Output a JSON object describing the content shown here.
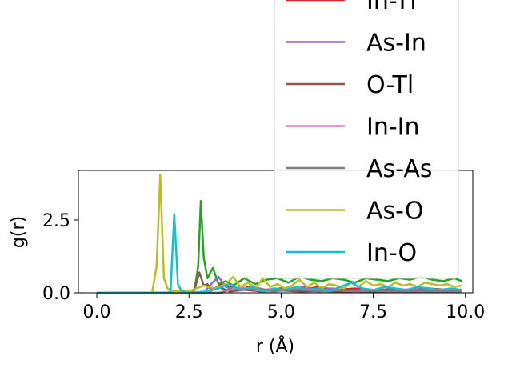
{
  "chart_data": {
    "type": "line",
    "xlabel": "r (Å)",
    "ylabel": "g(r)",
    "xlim": [
      -0.5,
      10.2
    ],
    "ylim": [
      0,
      4.2
    ],
    "x_ticks": [
      "0.0",
      "2.5",
      "5.0",
      "7.5",
      "10.0"
    ],
    "x_tick_values": [
      0,
      2.5,
      5,
      7.5,
      10
    ],
    "y_ticks": [
      "0.0",
      "2.5"
    ],
    "y_tick_values": [
      0,
      2.5
    ],
    "grid": false,
    "legend_placement": "upper-right",
    "legend_entries": [
      "In-Tl",
      "As-In",
      "O-Tl",
      "In-In",
      "As-As",
      "As-O",
      "In-O"
    ],
    "series": [
      {
        "name": "",
        "color": "#2ca02c",
        "x": [
          0,
          2.5,
          2.65,
          2.75,
          2.82,
          2.9,
          3.0,
          3.15,
          3.3,
          3.5,
          3.7,
          4.0,
          4.3,
          4.6,
          4.9,
          5.2,
          5.5,
          5.8,
          6.1,
          6.4,
          6.7,
          7.0,
          7.3,
          7.6,
          7.9,
          8.2,
          8.5,
          8.8,
          9.1,
          9.4,
          9.7,
          9.9
        ],
        "y": [
          0,
          0,
          0.1,
          0.9,
          3.15,
          1.2,
          0.5,
          0.85,
          0.3,
          0.4,
          0.25,
          0.5,
          0.3,
          0.45,
          0.5,
          0.35,
          0.55,
          0.45,
          0.4,
          0.5,
          0.45,
          0.35,
          0.5,
          0.45,
          0.4,
          0.5,
          0.45,
          0.55,
          0.45,
          0.4,
          0.5,
          0.4
        ]
      },
      {
        "name": "",
        "color": "#d62728",
        "x": [
          0,
          3.0,
          3.2,
          3.4,
          3.6,
          3.9,
          4.2,
          4.5,
          5.0,
          5.5,
          6.0,
          6.5,
          7.0,
          7.5,
          8.0,
          8.5,
          9.0,
          9.5,
          9.9
        ],
        "y": [
          0,
          0,
          0.15,
          0.3,
          0.2,
          0.1,
          0.25,
          0.1,
          0.15,
          0.1,
          0.2,
          0.1,
          0.15,
          0.1,
          0.12,
          0.1,
          0.15,
          0.1,
          0.1
        ]
      },
      {
        "name": "",
        "color": "#9467bd",
        "x": [
          0,
          2.9,
          3.1,
          3.3,
          3.5,
          3.8,
          4.1,
          4.4,
          4.8,
          5.2,
          5.6,
          6.0,
          6.4,
          6.8,
          7.2,
          7.6,
          8.0,
          8.5,
          9.0,
          9.5,
          9.9
        ],
        "y": [
          0,
          0,
          0.3,
          0.55,
          0.2,
          0.1,
          0.15,
          0.05,
          0.1,
          0.1,
          0.2,
          0.1,
          0.15,
          0.05,
          0.1,
          0.1,
          0.08,
          0.12,
          0.1,
          0.08,
          0.1
        ]
      },
      {
        "name": "",
        "color": "#8c564b",
        "x": [
          0,
          2.5,
          2.65,
          2.78,
          2.9,
          3.0,
          3.1,
          3.3,
          3.6,
          4.0,
          4.5,
          5.0,
          5.5,
          6.0,
          6.5,
          7.0,
          7.5,
          8.0,
          8.5,
          9.0,
          9.5,
          9.9
        ],
        "y": [
          0,
          0,
          0.1,
          0.7,
          0.25,
          0.3,
          0.1,
          0.2,
          0.05,
          0.1,
          0.05,
          0.08,
          0.05,
          0.06,
          0.05,
          0.04,
          0.05,
          0.04,
          0.05,
          0.04,
          0.05,
          0.04
        ]
      },
      {
        "name": "",
        "color": "#e377c2",
        "x": [
          0,
          3.3,
          3.6,
          3.9,
          4.3,
          4.7,
          5.1,
          5.5,
          6.0,
          6.5,
          7.0,
          7.5,
          8.0,
          8.5,
          9.0,
          9.5,
          9.9
        ],
        "y": [
          0,
          0,
          0.1,
          0.2,
          0.1,
          0.05,
          0.1,
          0.15,
          0.05,
          0.1,
          0.05,
          0.08,
          0.05,
          0.06,
          0.05,
          0.04,
          0.05
        ]
      },
      {
        "name": "",
        "color": "#7f7f7f",
        "x": [
          0,
          3.4,
          3.7,
          4.0,
          4.4,
          4.8,
          5.2,
          5.6,
          6.0,
          6.5,
          7.0,
          7.5,
          8.0,
          8.5,
          9.0,
          9.5,
          9.9
        ],
        "y": [
          0,
          0,
          0.2,
          0.1,
          0.15,
          0.05,
          0.1,
          0.12,
          0.05,
          0.1,
          0.06,
          0.08,
          0.05,
          0.06,
          0.05,
          0.04,
          0.05
        ]
      },
      {
        "name": "",
        "color": "#bcbd22",
        "x": [
          0,
          1.5,
          1.62,
          1.72,
          1.82,
          1.92,
          2.1,
          2.5,
          2.9,
          3.2,
          3.5,
          3.7,
          3.9,
          4.1,
          4.3,
          4.5,
          4.7,
          4.9,
          5.1,
          5.3,
          5.5,
          5.7,
          5.9,
          6.1,
          6.3,
          6.5,
          6.7,
          6.9,
          7.1,
          7.3,
          7.5,
          7.7,
          7.9,
          8.1,
          8.3,
          8.5,
          8.7,
          8.9,
          9.1,
          9.3,
          9.5,
          9.7,
          9.9
        ],
        "y": [
          0,
          0,
          0.9,
          4.05,
          0.5,
          0.15,
          0.05,
          0.05,
          0.25,
          0.15,
          0.3,
          0.55,
          0.2,
          0.35,
          0.15,
          0.5,
          0.2,
          0.3,
          0.15,
          0.25,
          0.45,
          0.2,
          0.35,
          0.15,
          0.3,
          0.25,
          0.15,
          0.35,
          0.2,
          0.4,
          0.25,
          0.3,
          0.2,
          0.35,
          0.25,
          0.3,
          0.2,
          0.35,
          0.3,
          0.25,
          0.3,
          0.2,
          0.25
        ]
      },
      {
        "name": "",
        "color": "#17becf",
        "x": [
          0,
          1.9,
          2.0,
          2.1,
          2.2,
          2.3,
          2.5,
          3.0,
          3.3,
          3.6,
          3.9,
          4.2,
          4.5,
          4.8,
          5.1,
          5.4,
          5.7,
          6.0,
          6.3,
          6.6,
          6.9,
          7.2,
          7.5,
          7.8,
          8.1,
          8.4,
          8.7,
          9.0,
          9.3,
          9.6,
          9.9
        ],
        "y": [
          0,
          0,
          0.05,
          2.7,
          0.3,
          0.05,
          0.0,
          0.05,
          0.15,
          0.3,
          0.1,
          0.2,
          0.05,
          0.15,
          0.1,
          0.2,
          0.1,
          0.15,
          0.05,
          0.2,
          0.35,
          0.15,
          0.1,
          0.2,
          0.15,
          0.1,
          0.2,
          0.15,
          0.1,
          0.15,
          0.1
        ]
      }
    ],
    "legend": [
      {
        "label": "In-Tl",
        "color": "#d62728"
      },
      {
        "label": "As-In",
        "color": "#9467bd"
      },
      {
        "label": "O-Tl",
        "color": "#8c564b"
      },
      {
        "label": "In-In",
        "color": "#e377c2"
      },
      {
        "label": "As-As",
        "color": "#7f7f7f"
      },
      {
        "label": "As-O",
        "color": "#bcbd22"
      },
      {
        "label": "In-O",
        "color": "#17becf"
      }
    ]
  }
}
